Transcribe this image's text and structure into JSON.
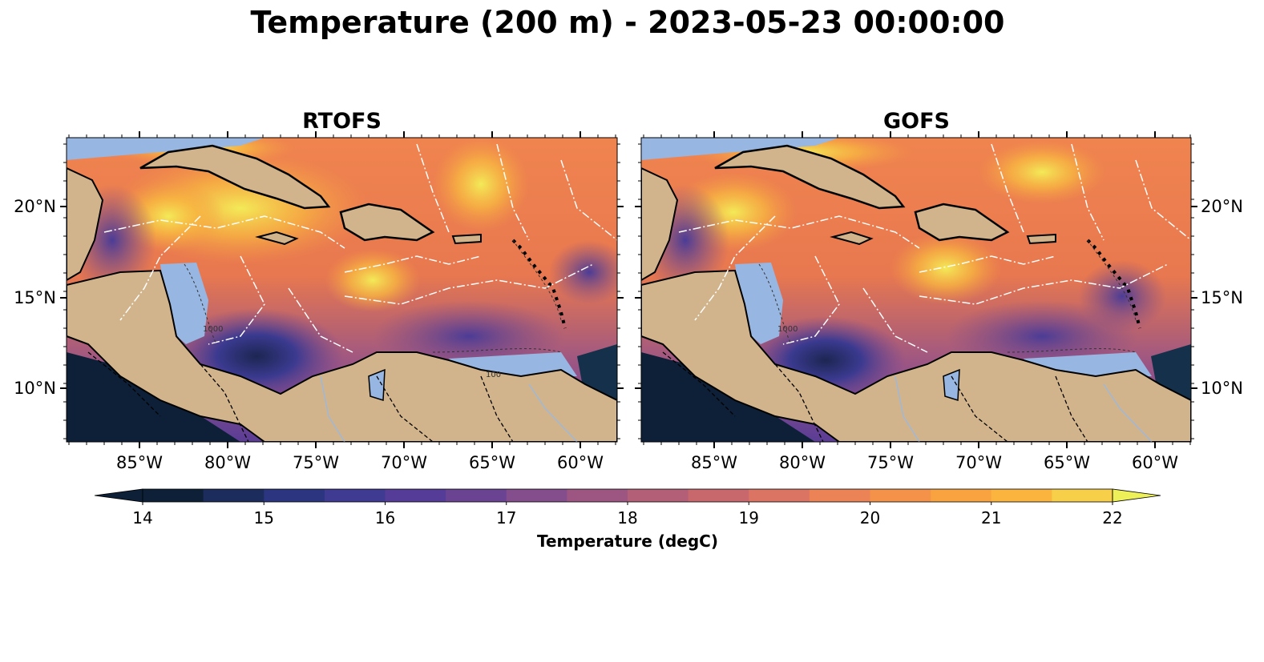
{
  "figure": {
    "title": "Temperature (200 m) - 2023-05-23 00:00:00",
    "panels": [
      {
        "title": "RTOFS",
        "contour_labels": [
          "1000",
          "100"
        ]
      },
      {
        "title": "GOFS",
        "contour_labels": [
          "1000"
        ]
      }
    ],
    "lon_ticks": [
      "85°W",
      "80°W",
      "75°W",
      "70°W",
      "65°W",
      "60°W"
    ],
    "lat_ticks": [
      "20°N",
      "15°N",
      "10°N"
    ],
    "colorbar": {
      "label": "Temperature (degC)",
      "ticks": [
        "14",
        "15",
        "16",
        "17",
        "18",
        "19",
        "20",
        "21",
        "22"
      ],
      "min": 14,
      "max": 22,
      "extend": "both",
      "colors": [
        "#0e2038",
        "#1c2c5c",
        "#2b3580",
        "#3f3a92",
        "#553c98",
        "#6b4393",
        "#844d8b",
        "#9d5682",
        "#b35f78",
        "#c8686d",
        "#db7463",
        "#ec8356",
        "#f5924a",
        "#f9a340",
        "#fbb53e",
        "#f7cf48",
        "#eef05a"
      ]
    },
    "colors": {
      "land": "#d2b48c",
      "shelf": "#97b6e1",
      "eez_lines": "#ffffff",
      "borders": "#000000"
    }
  }
}
